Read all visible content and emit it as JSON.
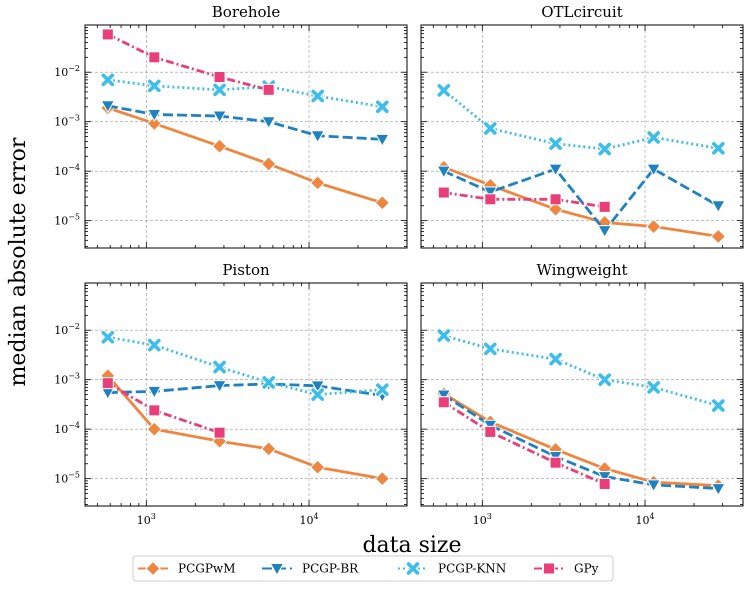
{
  "figure": {
    "xlabel": "data size",
    "ylabel": "median absolute error",
    "colors": {
      "PCGPwM": "#ee8640",
      "PCGP-BR": "#1f82c0",
      "PCGP-KNN": "#3dbdea",
      "GPy": "#ea3e78",
      "grid": "#9a9a9a",
      "axes": "#000000"
    },
    "markers": {
      "PCGPwM": "diamond",
      "PCGP-BR": "triangle-down",
      "PCGP-KNN": "x",
      "GPy": "square"
    },
    "linestyles": {
      "PCGPwM": "solid",
      "PCGP-BR": "dashed",
      "PCGP-KNN": "dotted",
      "GPy": "dashdot"
    },
    "legend": {
      "placement": "bottom-center",
      "entries": [
        "PCGPwM",
        "PCGP-BR",
        "PCGP-KNN",
        "GPy"
      ]
    }
  },
  "chart_data": [
    {
      "type": "line",
      "title": "Borehole",
      "xscale": "log",
      "yscale": "log",
      "xlim": [
        420,
        40000
      ],
      "ylim": [
        2.8e-06,
        0.09
      ],
      "xticks": [
        {
          "value": 1000,
          "label": "10^3"
        },
        {
          "value": 10000,
          "label": "10^4"
        }
      ],
      "yticks": [
        {
          "value": 0.01,
          "label": "10^-2"
        },
        {
          "value": 0.001,
          "label": "10^-3"
        },
        {
          "value": 0.0001,
          "label": "10^-4"
        },
        {
          "value": 1e-05,
          "label": "10^-5"
        }
      ],
      "grid": true,
      "series": [
        {
          "name": "PCGPwM",
          "x": [
            580,
            1120,
            2820,
            5650,
            11300,
            28200
          ],
          "y": [
            0.0019,
            0.00092,
            0.00032,
            0.00014,
            5.8e-05,
            2.3e-05
          ]
        },
        {
          "name": "PCGP-BR",
          "x": [
            580,
            1120,
            2820,
            5650,
            11300,
            28200
          ],
          "y": [
            0.0021,
            0.0014,
            0.0013,
            0.001,
            0.00052,
            0.00044
          ]
        },
        {
          "name": "PCGP-KNN",
          "x": [
            580,
            1120,
            2820,
            5650,
            11300,
            28200
          ],
          "y": [
            0.007,
            0.0053,
            0.0044,
            0.0051,
            0.0033,
            0.002
          ]
        },
        {
          "name": "GPy",
          "x": [
            580,
            1120,
            2820,
            5650
          ],
          "y": [
            0.058,
            0.02,
            0.008,
            0.0044
          ]
        }
      ]
    },
    {
      "type": "line",
      "title": "OTLcircuit",
      "xscale": "log",
      "yscale": "log",
      "xlim": [
        420,
        40000
      ],
      "ylim": [
        2.8e-06,
        0.09
      ],
      "xticks": [
        {
          "value": 1000,
          "label": "10^3"
        },
        {
          "value": 10000,
          "label": "10^4"
        }
      ],
      "yticks": [],
      "grid": true,
      "series": [
        {
          "name": "PCGPwM",
          "x": [
            580,
            1120,
            2820,
            5650,
            11300,
            28200
          ],
          "y": [
            0.00012,
            5.2e-05,
            1.7e-05,
            9.2e-06,
            7.6e-06,
            4.8e-06
          ]
        },
        {
          "name": "PCGP-BR",
          "x": [
            580,
            1120,
            2820,
            5650,
            11300,
            28200
          ],
          "y": [
            0.0001,
            3.8e-05,
            0.00011,
            6.3e-06,
            0.00011,
            2e-05
          ]
        },
        {
          "name": "PCGP-KNN",
          "x": [
            580,
            1120,
            2820,
            5650,
            11300,
            28200
          ],
          "y": [
            0.0043,
            0.00073,
            0.00036,
            0.00028,
            0.00048,
            0.00029
          ]
        },
        {
          "name": "GPy",
          "x": [
            580,
            1120,
            2820,
            5650
          ],
          "y": [
            3.7e-05,
            2.7e-05,
            2.7e-05,
            1.9e-05
          ]
        }
      ]
    },
    {
      "type": "line",
      "title": "Piston",
      "xscale": "log",
      "yscale": "log",
      "xlim": [
        420,
        40000
      ],
      "ylim": [
        2.8e-06,
        0.09
      ],
      "xticks": [
        {
          "value": 1000,
          "label": "10^3"
        },
        {
          "value": 10000,
          "label": "10^4"
        }
      ],
      "yticks": [
        {
          "value": 0.01,
          "label": "10^-2"
        },
        {
          "value": 0.001,
          "label": "10^-3"
        },
        {
          "value": 0.0001,
          "label": "10^-4"
        },
        {
          "value": 1e-05,
          "label": "10^-5"
        }
      ],
      "grid": true,
      "series": [
        {
          "name": "PCGPwM",
          "x": [
            580,
            1120,
            2820,
            5650,
            11300,
            28200
          ],
          "y": [
            0.0012,
            0.0001,
            5.7e-05,
            4e-05,
            1.7e-05,
            1e-05
          ]
        },
        {
          "name": "PCGP-BR",
          "x": [
            580,
            1120,
            2820,
            5650,
            11300,
            28200
          ],
          "y": [
            0.00055,
            0.00058,
            0.00076,
            0.00082,
            0.00075,
            0.00048
          ]
        },
        {
          "name": "PCGP-KNN",
          "x": [
            580,
            1120,
            2820,
            5650,
            11300,
            28200
          ],
          "y": [
            0.0072,
            0.005,
            0.0018,
            0.00088,
            0.0005,
            0.00063
          ]
        },
        {
          "name": "GPy",
          "x": [
            580,
            1120,
            2820
          ],
          "y": [
            0.00085,
            0.00024,
            8.5e-05
          ]
        }
      ]
    },
    {
      "type": "line",
      "title": "Wingweight",
      "xscale": "log",
      "yscale": "log",
      "xlim": [
        420,
        40000
      ],
      "ylim": [
        2.8e-06,
        0.09
      ],
      "xticks": [
        {
          "value": 1000,
          "label": "10^3"
        },
        {
          "value": 10000,
          "label": "10^4"
        }
      ],
      "yticks": [],
      "grid": true,
      "series": [
        {
          "name": "PCGPwM",
          "x": [
            580,
            1120,
            2820,
            5650,
            11300,
            28200
          ],
          "y": [
            0.00052,
            0.00014,
            3.9e-05,
            1.6e-05,
            8.5e-06,
            7.2e-06
          ]
        },
        {
          "name": "PCGP-BR",
          "x": [
            580,
            1120,
            2820,
            5650,
            11300,
            28200
          ],
          "y": [
            0.00049,
            0.00012,
            2.8e-05,
            1.1e-05,
            7.5e-06,
            6.3e-06
          ]
        },
        {
          "name": "PCGP-KNN",
          "x": [
            580,
            1120,
            2820,
            5650,
            11300,
            28200
          ],
          "y": [
            0.0078,
            0.0042,
            0.0026,
            0.001,
            0.0007,
            0.0003
          ]
        },
        {
          "name": "GPy",
          "x": [
            580,
            1120,
            2820,
            5650
          ],
          "y": [
            0.00035,
            8.8e-05,
            2.1e-05,
            7.8e-06
          ]
        }
      ]
    }
  ]
}
